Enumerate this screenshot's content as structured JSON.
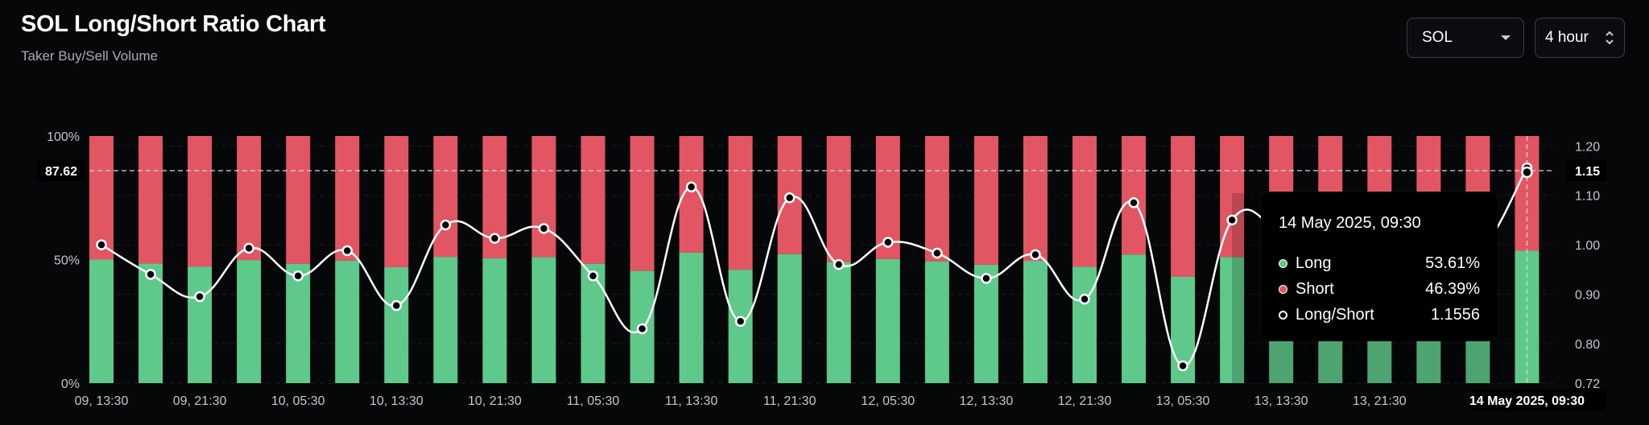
{
  "header": {
    "title": "SOL Long/Short Ratio Chart",
    "subtitle": "Taker Buy/Sell Volume"
  },
  "controls": {
    "coin_select": {
      "value": "SOL",
      "icon": "chevron-down-icon"
    },
    "interval_select": {
      "value": "4 hour",
      "icon": "updown-chevron-icon"
    }
  },
  "colors": {
    "long": "#5ec98a",
    "short": "#e25663",
    "ratio_line": "#ffffff",
    "background": "#060709"
  },
  "crosshair": {
    "left_label": "87.62",
    "right_label": "1.15",
    "x_label": "14 May 2025, 09:30"
  },
  "tooltip": {
    "date": "14 May 2025, 09:30",
    "rows": [
      {
        "label": "Long",
        "value": "53.61%"
      },
      {
        "label": "Short",
        "value": "46.39%"
      },
      {
        "label": "Long/Short",
        "value": "1.1556"
      }
    ]
  },
  "chart_data": {
    "type": "bar",
    "title": "SOL Long/Short Ratio Chart",
    "subtitle": "Taker Buy/Sell Volume",
    "grid": true,
    "left_axis": {
      "ticks": [
        "0%",
        "50%",
        "100%"
      ],
      "range": [
        0,
        100
      ]
    },
    "right_axis": {
      "ticks": [
        "0.72",
        "0.80",
        "0.90",
        "1.00",
        "1.10",
        "1.20"
      ],
      "range": [
        0.72,
        1.22
      ]
    },
    "x_ticks": [
      "09, 13:30",
      "09, 21:30",
      "10, 05:30",
      "10, 13:30",
      "10, 21:30",
      "11, 05:30",
      "11, 13:30",
      "11, 21:30",
      "12, 05:30",
      "12, 13:30",
      "12, 21:30",
      "13, 05:30",
      "13, 13:30",
      "13, 21:30",
      "14"
    ],
    "series": [
      {
        "name": "Long",
        "stacked": true,
        "values": [
          50.0,
          48.4,
          47.2,
          49.8,
          48.3,
          49.6,
          46.9,
          51.1,
          50.5,
          51.0,
          48.3,
          45.4,
          52.8,
          45.9,
          52.2,
          49.0,
          50.2,
          49.3,
          47.9,
          49.5,
          47.1,
          52.0,
          43.0,
          51.0,
          50.8,
          50.5,
          50.2,
          50.0,
          49.6,
          53.61
        ]
      },
      {
        "name": "Short",
        "stacked": true,
        "values": [
          50.0,
          51.6,
          52.8,
          50.2,
          51.7,
          50.4,
          53.1,
          48.9,
          49.5,
          49.0,
          51.7,
          54.6,
          47.2,
          54.1,
          47.8,
          51.0,
          49.8,
          50.7,
          52.1,
          50.5,
          52.9,
          48.0,
          57.0,
          49.0,
          49.2,
          49.5,
          49.8,
          50.0,
          50.4,
          46.39
        ]
      },
      {
        "name": "Long/Short",
        "type": "line",
        "axis": "right",
        "values": [
          1.0,
          0.94,
          0.895,
          0.993,
          0.937,
          0.988,
          0.877,
          1.04,
          1.013,
          1.033,
          0.937,
          0.83,
          1.117,
          0.845,
          1.095,
          0.96,
          1.005,
          0.983,
          0.932,
          0.98,
          0.89,
          1.085,
          0.755,
          1.05,
          1.03,
          1.02,
          1.01,
          1.0,
          0.984,
          1.1556
        ]
      }
    ]
  }
}
